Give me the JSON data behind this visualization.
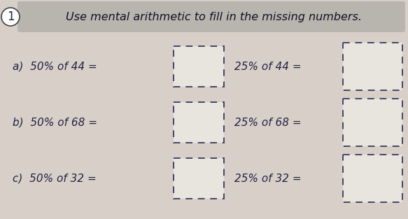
{
  "title": "Use mental arithmetic to fill in the missing numbers.",
  "question_number": "1",
  "background_color": "#d8d0c8",
  "title_bg_color": "#b8b4ae",
  "rows": [
    {
      "label": "a)",
      "left_text": "a)  50% of 44 =",
      "right_text": "25% of 44 ="
    },
    {
      "label": "b)",
      "left_text": "b)  50% of 68 =",
      "right_text": "25% of 68 ="
    },
    {
      "label": "c)",
      "left_text": "c)  50% of 32 =",
      "right_text": "25% of 32 ="
    }
  ],
  "box_color": "#e8e4de",
  "box_edge_color": "#444466",
  "text_color": "#222244",
  "title_text_color": "#111122",
  "font_size_title": 11.5,
  "font_size_body": 11,
  "font_size_number": 12
}
